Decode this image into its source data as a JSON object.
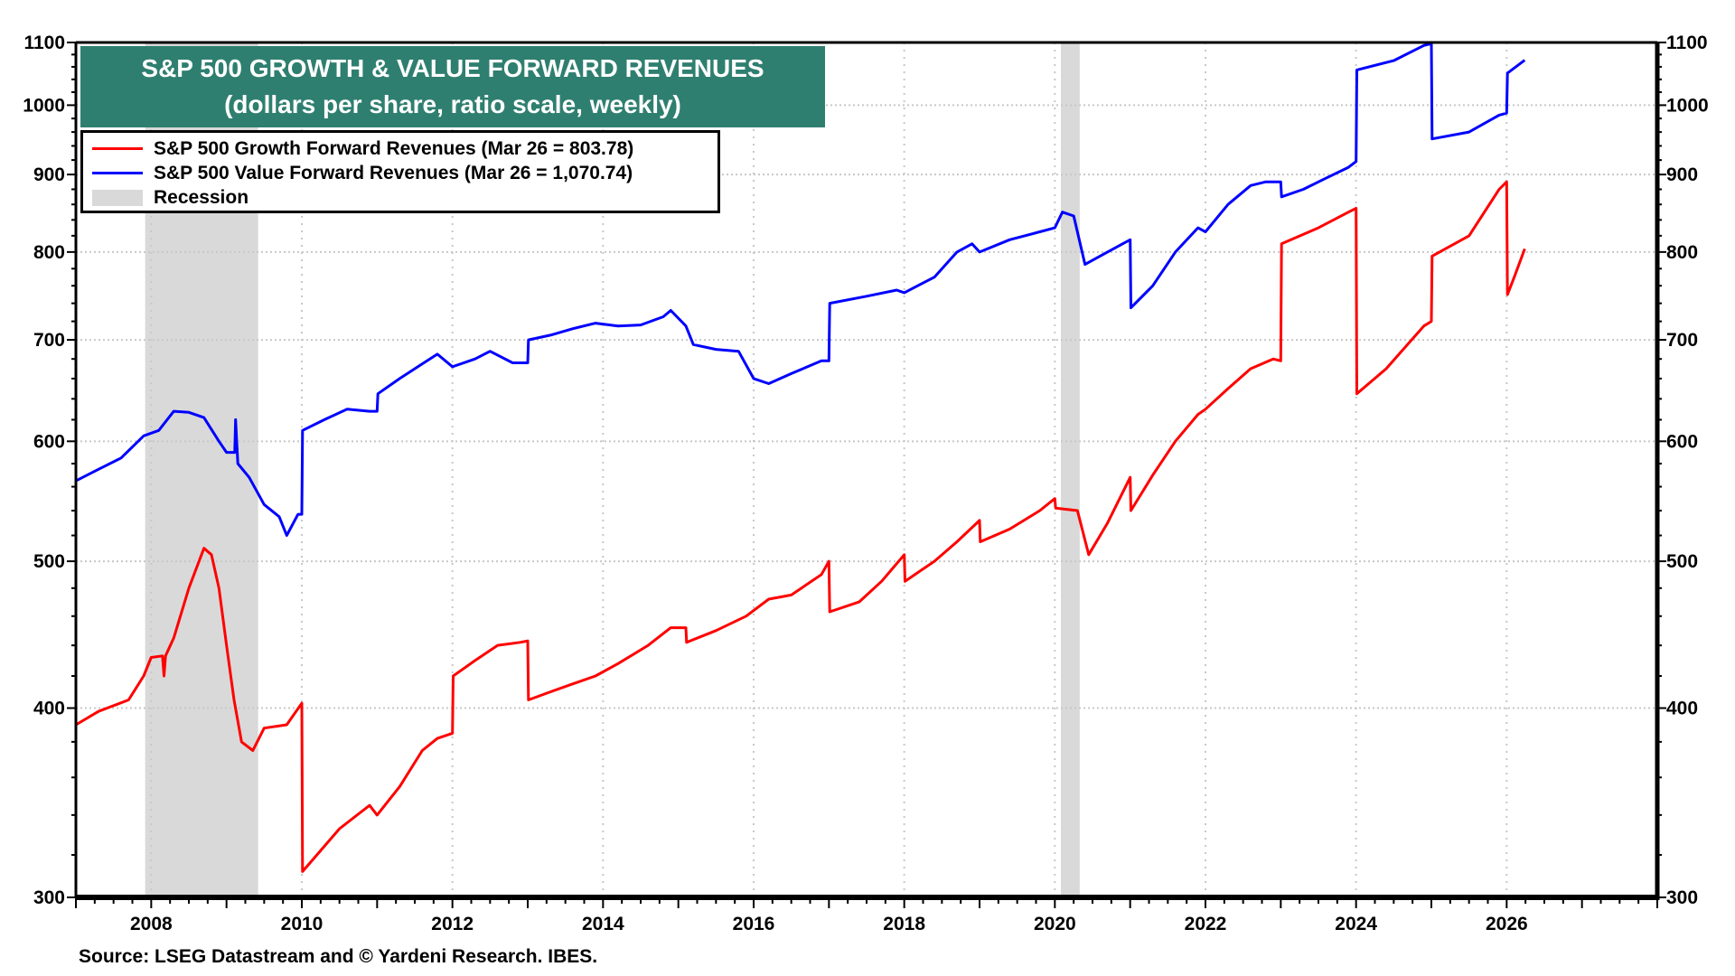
{
  "chart_data": {
    "type": "line",
    "title": "S&P 500 GROWTH & VALUE FORWARD REVENUES",
    "subtitle": "(dollars per share, ratio scale, weekly)",
    "xlabel": "",
    "ylabel": "",
    "xlim": [
      2007,
      2028
    ],
    "ylim": [
      300,
      1100
    ],
    "y_scale": "log",
    "grid": true,
    "legend_placement": "top-left",
    "y_ticks": [
      300,
      400,
      500,
      600,
      700,
      800,
      900,
      1000,
      1100
    ],
    "x_ticks": [
      2008,
      2010,
      2012,
      2014,
      2016,
      2018,
      2020,
      2022,
      2024,
      2026
    ],
    "recessions": [
      {
        "label": "Recession",
        "start": 2007.92,
        "end": 2009.42,
        "color": "#D9D9D9"
      },
      {
        "label": "Recession",
        "start": 2020.08,
        "end": 2020.33,
        "color": "#D9D9D9"
      }
    ],
    "series": [
      {
        "name": "S&P 500 Growth Forward Revenues (Mar 26 = 803.78)",
        "color": "#FF0000",
        "x": [
          2007.0,
          2007.3,
          2007.7,
          2007.9,
          2008.0,
          2008.15,
          2008.17,
          2008.19,
          2008.3,
          2008.5,
          2008.7,
          2008.8,
          2008.9,
          2009.0,
          2009.1,
          2009.2,
          2009.35,
          2009.5,
          2009.8,
          2010.0,
          2010.01,
          2010.2,
          2010.5,
          2010.9,
          2011.0,
          2011.3,
          2011.6,
          2011.8,
          2012.0,
          2012.01,
          2012.3,
          2012.6,
          2012.9,
          2013.0,
          2013.01,
          2013.3,
          2013.6,
          2013.9,
          2014.2,
          2014.6,
          2014.9,
          2015.1,
          2015.11,
          2015.5,
          2015.9,
          2016.2,
          2016.5,
          2016.9,
          2017.0,
          2017.01,
          2017.4,
          2017.7,
          2018.0,
          2018.01,
          2018.4,
          2018.7,
          2019.0,
          2019.01,
          2019.4,
          2019.8,
          2020.0,
          2020.01,
          2020.3,
          2020.45,
          2020.7,
          2021.0,
          2021.01,
          2021.3,
          2021.6,
          2021.9,
          2022.0,
          2022.3,
          2022.6,
          2022.9,
          2023.0,
          2023.01,
          2023.5,
          2023.9,
          2024.0,
          2024.01,
          2024.4,
          2024.9,
          2025.0,
          2025.01,
          2025.5,
          2025.9,
          2026.0,
          2026.01,
          2026.1,
          2026.24
        ],
        "values": [
          390,
          398,
          405,
          420,
          432,
          433,
          420,
          433,
          445,
          480,
          510,
          505,
          480,
          440,
          405,
          380,
          375,
          388,
          390,
          403,
          312,
          320,
          333,
          345,
          340,
          355,
          375,
          382,
          385,
          420,
          430,
          440,
          442,
          443,
          405,
          410,
          415,
          420,
          428,
          440,
          452,
          452,
          442,
          450,
          460,
          472,
          475,
          490,
          500,
          463,
          470,
          485,
          505,
          485,
          500,
          515,
          532,
          515,
          525,
          540,
          550,
          542,
          540,
          505,
          530,
          568,
          540,
          570,
          600,
          625,
          630,
          650,
          670,
          680,
          678,
          810,
          830,
          850,
          855,
          645,
          670,
          715,
          720,
          795,
          820,
          880,
          890,
          750,
          770,
          803.78
        ]
      },
      {
        "name": "S&P 500 Value Forward Revenues (Mar 26 = 1,070.74)",
        "color": "#0000FF",
        "x": [
          2007.0,
          2007.3,
          2007.6,
          2007.9,
          2008.1,
          2008.3,
          2008.5,
          2008.7,
          2008.9,
          2009.0,
          2009.11,
          2009.12,
          2009.15,
          2009.3,
          2009.5,
          2009.7,
          2009.8,
          2009.95,
          2010.0,
          2010.01,
          2010.3,
          2010.6,
          2010.9,
          2011.0,
          2011.01,
          2011.3,
          2011.6,
          2011.8,
          2012.0,
          2012.3,
          2012.5,
          2012.8,
          2013.0,
          2013.01,
          2013.3,
          2013.6,
          2013.9,
          2014.2,
          2014.5,
          2014.8,
          2014.9,
          2015.1,
          2015.2,
          2015.5,
          2015.8,
          2016.0,
          2016.2,
          2016.5,
          2016.9,
          2017.0,
          2017.01,
          2017.5,
          2017.9,
          2018.0,
          2018.4,
          2018.7,
          2018.9,
          2019.0,
          2019.4,
          2019.8,
          2020.0,
          2020.1,
          2020.25,
          2020.4,
          2020.6,
          2020.9,
          2021.0,
          2021.01,
          2021.3,
          2021.6,
          2021.9,
          2022.0,
          2022.3,
          2022.6,
          2022.8,
          2023.0,
          2023.01,
          2023.3,
          2023.6,
          2023.9,
          2024.0,
          2024.01,
          2024.5,
          2024.9,
          2025.0,
          2025.01,
          2025.5,
          2025.9,
          2026.0,
          2026.01,
          2026.24
        ],
        "values": [
          565,
          575,
          585,
          605,
          610,
          628,
          627,
          622,
          600,
          590,
          590,
          620,
          580,
          568,
          545,
          535,
          520,
          537,
          537,
          610,
          620,
          630,
          628,
          628,
          645,
          660,
          675,
          685,
          672,
          680,
          688,
          676,
          676,
          700,
          705,
          712,
          718,
          715,
          716,
          725,
          732,
          715,
          695,
          690,
          688,
          660,
          655,
          665,
          678,
          678,
          740,
          748,
          755,
          752,
          770,
          800,
          810,
          800,
          815,
          825,
          830,
          850,
          845,
          785,
          795,
          810,
          815,
          735,
          760,
          800,
          830,
          825,
          860,
          885,
          890,
          890,
          870,
          880,
          895,
          910,
          918,
          1055,
          1070,
          1095,
          1098,
          950,
          960,
          985,
          988,
          1050,
          1070.74
        ]
      }
    ]
  },
  "legend": {
    "items": [
      {
        "label": "S&P 500 Growth Forward Revenues (Mar 26 = 803.78)",
        "color": "#FF0000"
      },
      {
        "label": "S&P 500 Value Forward Revenues (Mar 26 = 1,070.74)",
        "color": "#0000FF"
      },
      {
        "label": "Recession",
        "color": "#D9D9D9"
      }
    ]
  },
  "title_box_color": "#2F7F70",
  "source": "Source: LSEG Datastream and © Yardeni Research. IBES."
}
